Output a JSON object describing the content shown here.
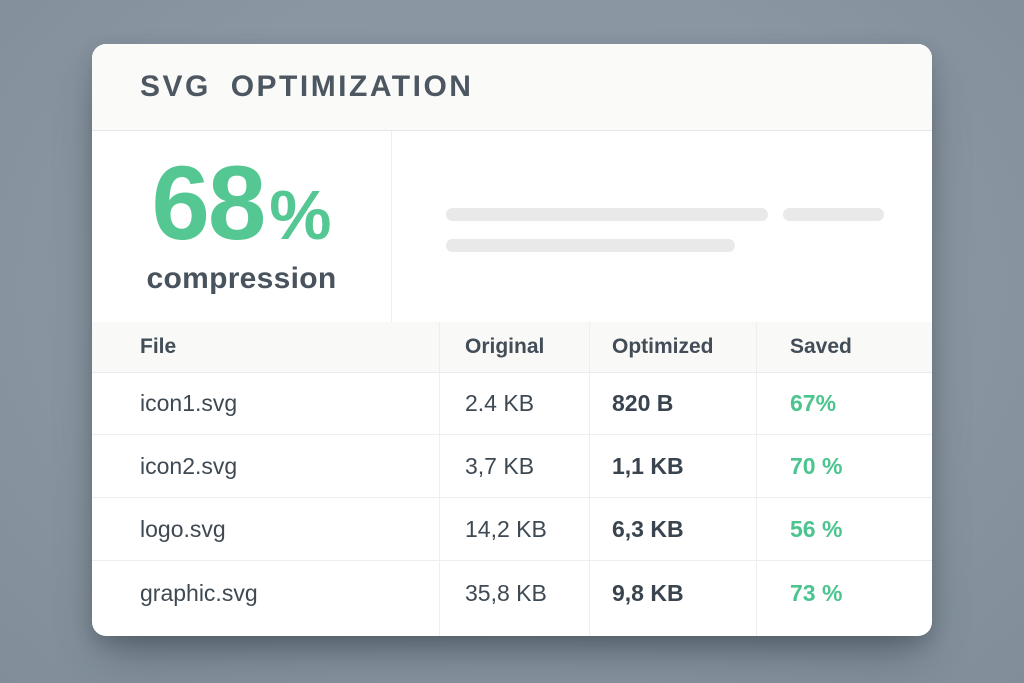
{
  "theme": {
    "page_bg": "#8a96a2",
    "card_bg": "#ffffff",
    "card_header_bg": "#fafaf9",
    "accent_green": "#52c68f",
    "text_primary": "#4d5761",
    "text_table": "#3e4953",
    "skeleton_gray": "#e9e9e9",
    "divider": "#edeeef"
  },
  "card": {
    "title": "SVG OPTIMIZATION"
  },
  "stats": {
    "value": "68",
    "unit": "%",
    "label": "compression"
  },
  "table": {
    "columns": [
      "File",
      "Original",
      "Optimized",
      "Saved"
    ],
    "rows": [
      {
        "file": "icon1.svg",
        "original": "2.4 KB",
        "optimized": "820 B",
        "saved": "67%"
      },
      {
        "file": "icon2.svg",
        "original": "3,7 KB",
        "optimized": "1,1 KB",
        "saved": "70 %"
      },
      {
        "file": "logo.svg",
        "original": "14,2 KB",
        "optimized": "6,3 KB",
        "saved": "56 %"
      },
      {
        "file": "graphic.svg",
        "original": "35,8 KB",
        "optimized": "9,8 KB",
        "saved": "73 %"
      }
    ]
  }
}
